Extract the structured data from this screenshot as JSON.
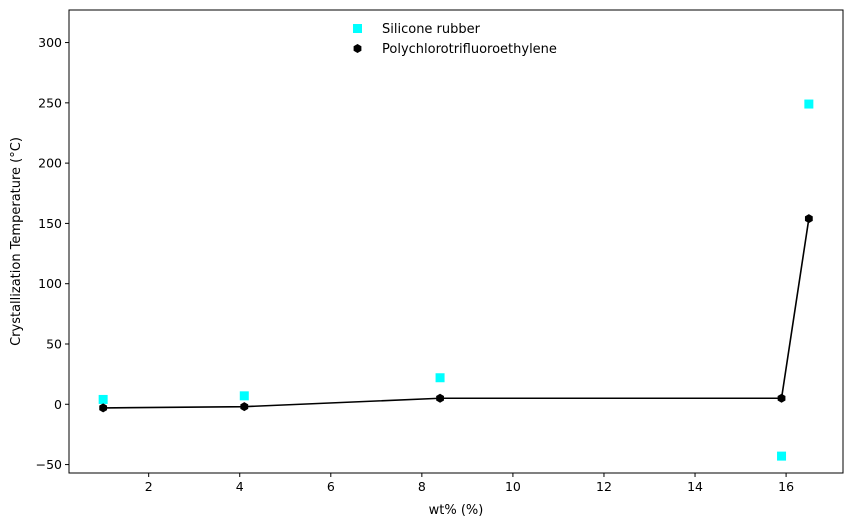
{
  "chart_data": {
    "type": "scatter",
    "title": "",
    "xlabel": "wt% (%)",
    "ylabel": "Crystallization Temperature (°C)",
    "xlim": [
      0.25,
      17.25
    ],
    "ylim": [
      -57,
      327
    ],
    "xticks": [
      2,
      4,
      6,
      8,
      10,
      12,
      14,
      16
    ],
    "yticks": [
      -50,
      0,
      50,
      100,
      150,
      200,
      250,
      300
    ],
    "grid": false,
    "legend_position": "top-center",
    "series": [
      {
        "name": "Silicone rubber",
        "marker": "square",
        "color": "#00ffff",
        "line": false,
        "x": [
          1.0,
          4.1,
          8.4,
          15.9,
          16.5
        ],
        "y": [
          4,
          7,
          22,
          -43,
          249
        ]
      },
      {
        "name": "Polychlorotrifluoroethylene",
        "marker": "hexagon",
        "color": "#000000",
        "line": true,
        "x": [
          1.0,
          4.1,
          8.4,
          15.9,
          16.5
        ],
        "y": [
          -3,
          -2,
          5,
          5,
          154
        ]
      }
    ]
  }
}
